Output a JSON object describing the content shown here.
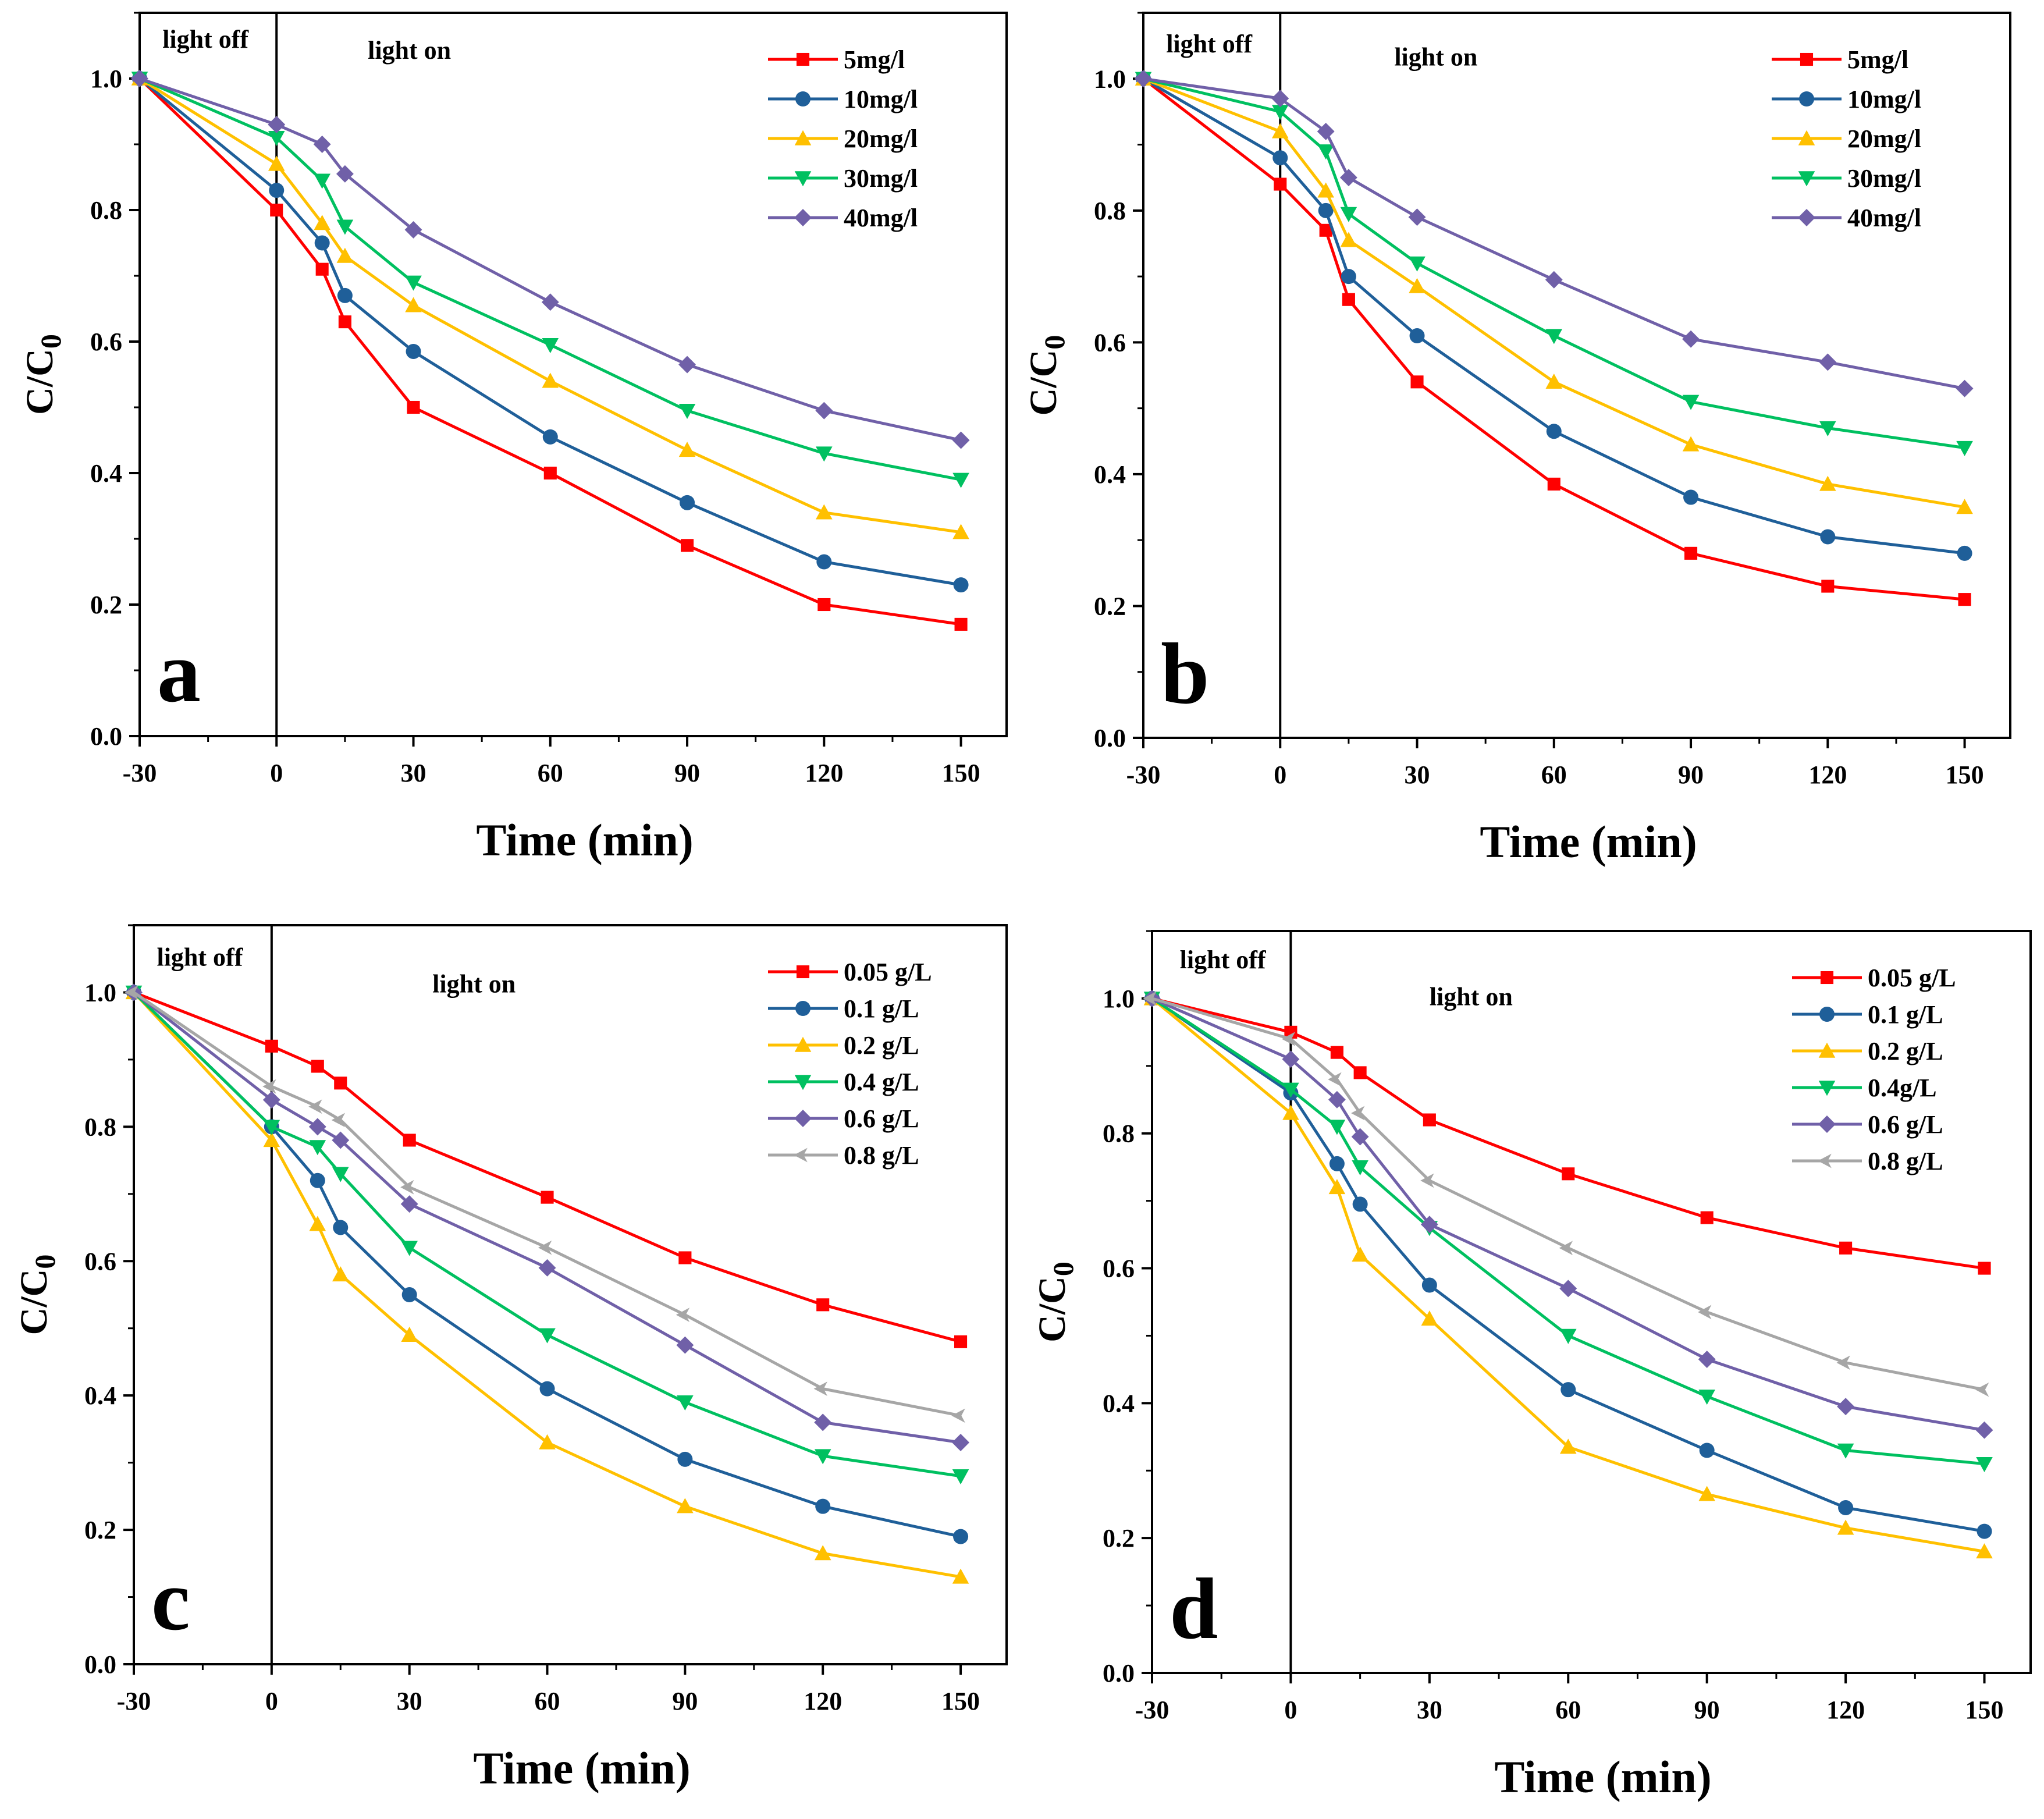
{
  "chart_data": [
    {
      "type": "line",
      "panel_label": "a",
      "xlabel": "Time (min)",
      "ylabel": "C/C",
      "ylabel_subscript": "0",
      "xlim": [
        -30,
        160
      ],
      "ylim": [
        0,
        1.1
      ],
      "x_ticks": [
        -30,
        0,
        30,
        60,
        90,
        120,
        150
      ],
      "x_tick_labels": [
        "-30",
        "0",
        "30",
        "60",
        "90",
        "120",
        "150"
      ],
      "y_ticks": [
        0.0,
        0.2,
        0.4,
        0.6,
        0.8,
        1.0
      ],
      "y_tick_labels": [
        "0.0",
        "0.2",
        "0.4",
        "0.6",
        "0.8",
        "1.0"
      ],
      "annotations": [
        {
          "text": "light off",
          "x": -25,
          "y": 1.047
        },
        {
          "text": "light on",
          "x": 20,
          "y": 1.03
        }
      ],
      "divider_x": 0,
      "legend_position": "top-right",
      "x": [
        -30,
        0,
        10,
        15,
        30,
        60,
        90,
        120,
        150
      ],
      "series": [
        {
          "name": "5mg/l",
          "color": "#ff0000",
          "marker": "square",
          "values": [
            1.0,
            0.8,
            0.71,
            0.63,
            0.5,
            0.4,
            0.29,
            0.2,
            0.17
          ]
        },
        {
          "name": "10mg/l",
          "color": "#1f5f99",
          "marker": "circle",
          "values": [
            1.0,
            0.83,
            0.75,
            0.67,
            0.585,
            0.455,
            0.355,
            0.265,
            0.23
          ]
        },
        {
          "name": "20mg/l",
          "color": "#ffc000",
          "marker": "triangle-up",
          "values": [
            1.0,
            0.87,
            0.78,
            0.73,
            0.655,
            0.54,
            0.435,
            0.34,
            0.31
          ]
        },
        {
          "name": "30mg/l",
          "color": "#00c060",
          "marker": "triangle-down",
          "values": [
            1.0,
            0.91,
            0.845,
            0.775,
            0.69,
            0.595,
            0.495,
            0.43,
            0.39
          ]
        },
        {
          "name": "40mg/l",
          "color": "#7060a8",
          "marker": "diamond",
          "values": [
            1.0,
            0.93,
            0.9,
            0.855,
            0.77,
            0.66,
            0.565,
            0.495,
            0.45
          ]
        }
      ]
    },
    {
      "type": "line",
      "panel_label": "b",
      "xlabel": "Time (min)",
      "ylabel": "C/C",
      "ylabel_subscript": "0",
      "xlim": [
        -30,
        160
      ],
      "ylim": [
        0,
        1.1
      ],
      "x_ticks": [
        -30,
        0,
        30,
        60,
        90,
        120,
        150
      ],
      "x_tick_labels": [
        "-30",
        "0",
        "30",
        "60",
        "90",
        "120",
        "150"
      ],
      "y_ticks": [
        0.0,
        0.2,
        0.4,
        0.6,
        0.8,
        1.0
      ],
      "y_tick_labels": [
        "0.0",
        "0.2",
        "0.4",
        "0.6",
        "0.8",
        "1.0"
      ],
      "annotations": [
        {
          "text": "light off",
          "x": -25,
          "y": 1.04
        },
        {
          "text": "light on",
          "x": 25,
          "y": 1.02
        }
      ],
      "divider_x": 0,
      "legend_position": "top-right",
      "x": [
        -30,
        0,
        10,
        15,
        30,
        60,
        90,
        120,
        150
      ],
      "series": [
        {
          "name": "5mg/l",
          "color": "#ff0000",
          "marker": "square",
          "values": [
            1.0,
            0.84,
            0.77,
            0.665,
            0.54,
            0.385,
            0.28,
            0.23,
            0.21
          ]
        },
        {
          "name": "10mg/l",
          "color": "#1f5f99",
          "marker": "circle",
          "values": [
            1.0,
            0.88,
            0.8,
            0.7,
            0.61,
            0.465,
            0.365,
            0.305,
            0.28
          ]
        },
        {
          "name": "20mg/l",
          "color": "#ffc000",
          "marker": "triangle-up",
          "values": [
            1.0,
            0.92,
            0.83,
            0.755,
            0.685,
            0.54,
            0.445,
            0.385,
            0.35
          ]
        },
        {
          "name": "30mg/l",
          "color": "#00c060",
          "marker": "triangle-down",
          "values": [
            1.0,
            0.95,
            0.89,
            0.795,
            0.72,
            0.61,
            0.51,
            0.47,
            0.44
          ]
        },
        {
          "name": "40mg/l",
          "color": "#7060a8",
          "marker": "diamond",
          "values": [
            1.0,
            0.97,
            0.92,
            0.85,
            0.79,
            0.695,
            0.605,
            0.57,
            0.53
          ]
        }
      ]
    },
    {
      "type": "line",
      "panel_label": "c",
      "xlabel": "Time (min)",
      "ylabel": "C/C",
      "ylabel_subscript": "0",
      "xlim": [
        -30,
        160
      ],
      "ylim": [
        0,
        1.1
      ],
      "x_ticks": [
        -30,
        0,
        30,
        60,
        90,
        120,
        150
      ],
      "x_tick_labels": [
        "-30",
        "0",
        "30",
        "60",
        "90",
        "120",
        "150"
      ],
      "y_ticks": [
        0.0,
        0.2,
        0.4,
        0.6,
        0.8,
        1.0
      ],
      "y_tick_labels": [
        "0.0",
        "0.2",
        "0.4",
        "0.6",
        "0.8",
        "1.0"
      ],
      "annotations": [
        {
          "text": "light off",
          "x": -25,
          "y": 1.04
        },
        {
          "text": "light on",
          "x": 35,
          "y": 1.0
        }
      ],
      "divider_x": 0,
      "legend_position": "top-right",
      "x": [
        -30,
        0,
        10,
        15,
        30,
        60,
        90,
        120,
        150
      ],
      "series": [
        {
          "name": "0.05 g/L",
          "color": "#ff0000",
          "marker": "square",
          "values": [
            1.0,
            0.92,
            0.89,
            0.865,
            0.78,
            0.695,
            0.605,
            0.535,
            0.48
          ]
        },
        {
          "name": "0.1 g/L",
          "color": "#1f5f99",
          "marker": "circle",
          "values": [
            1.0,
            0.8,
            0.72,
            0.65,
            0.55,
            0.41,
            0.305,
            0.235,
            0.19
          ]
        },
        {
          "name": "0.2 g/L",
          "color": "#ffc000",
          "marker": "triangle-up",
          "values": [
            1.0,
            0.78,
            0.655,
            0.58,
            0.49,
            0.33,
            0.235,
            0.165,
            0.13
          ]
        },
        {
          "name": "0.4 g/L",
          "color": "#00c060",
          "marker": "triangle-down",
          "values": [
            1.0,
            0.8,
            0.77,
            0.73,
            0.62,
            0.49,
            0.39,
            0.31,
            0.28
          ]
        },
        {
          "name": "0.6 g/L",
          "color": "#7060a8",
          "marker": "diamond",
          "values": [
            1.0,
            0.84,
            0.8,
            0.78,
            0.685,
            0.59,
            0.475,
            0.36,
            0.33
          ]
        },
        {
          "name": "0.8 g/L",
          "color": "#a6a6a6",
          "marker": "arrow-left",
          "values": [
            1.0,
            0.86,
            0.83,
            0.81,
            0.71,
            0.62,
            0.52,
            0.41,
            0.37
          ]
        }
      ]
    },
    {
      "type": "line",
      "panel_label": "d",
      "xlabel": "Time (min)",
      "ylabel": "C/C",
      "ylabel_subscript": "0",
      "xlim": [
        -30,
        160
      ],
      "ylim": [
        0,
        1.1
      ],
      "x_ticks": [
        -30,
        0,
        30,
        60,
        90,
        120,
        150
      ],
      "x_tick_labels": [
        "-30",
        "0",
        "30",
        "60",
        "90",
        "120",
        "150"
      ],
      "y_ticks": [
        0.0,
        0.2,
        0.4,
        0.6,
        0.8,
        1.0
      ],
      "y_tick_labels": [
        "0.0",
        "0.2",
        "0.4",
        "0.6",
        "0.8",
        "1.0"
      ],
      "annotations": [
        {
          "text": "light off",
          "x": -24,
          "y": 1.045
        },
        {
          "text": "light on",
          "x": 30,
          "y": 0.99
        }
      ],
      "divider_x": 0,
      "legend_position": "top-right",
      "x": [
        -30,
        0,
        10,
        15,
        30,
        60,
        90,
        120,
        150
      ],
      "series": [
        {
          "name": "0.05 g/L",
          "color": "#ff0000",
          "marker": "square",
          "values": [
            1.0,
            0.95,
            0.92,
            0.89,
            0.82,
            0.74,
            0.675,
            0.63,
            0.6
          ]
        },
        {
          "name": "0.1 g/L",
          "color": "#1f5f99",
          "marker": "circle",
          "values": [
            1.0,
            0.86,
            0.755,
            0.695,
            0.575,
            0.42,
            0.33,
            0.245,
            0.21
          ]
        },
        {
          "name": "0.2 g/L",
          "color": "#ffc000",
          "marker": "triangle-up",
          "values": [
            1.0,
            0.83,
            0.72,
            0.62,
            0.525,
            0.335,
            0.265,
            0.215,
            0.18
          ]
        },
        {
          "name": "0.4g/L",
          "color": "#00c060",
          "marker": "triangle-down",
          "values": [
            1.0,
            0.865,
            0.81,
            0.75,
            0.66,
            0.5,
            0.41,
            0.33,
            0.31
          ]
        },
        {
          "name": "0.6 g/L",
          "color": "#7060a8",
          "marker": "diamond",
          "values": [
            1.0,
            0.91,
            0.85,
            0.795,
            0.665,
            0.57,
            0.465,
            0.395,
            0.36
          ]
        },
        {
          "name": "0.8 g/L",
          "color": "#a6a6a6",
          "marker": "arrow-left",
          "values": [
            1.0,
            0.94,
            0.88,
            0.83,
            0.73,
            0.63,
            0.535,
            0.46,
            0.42
          ]
        }
      ]
    }
  ]
}
